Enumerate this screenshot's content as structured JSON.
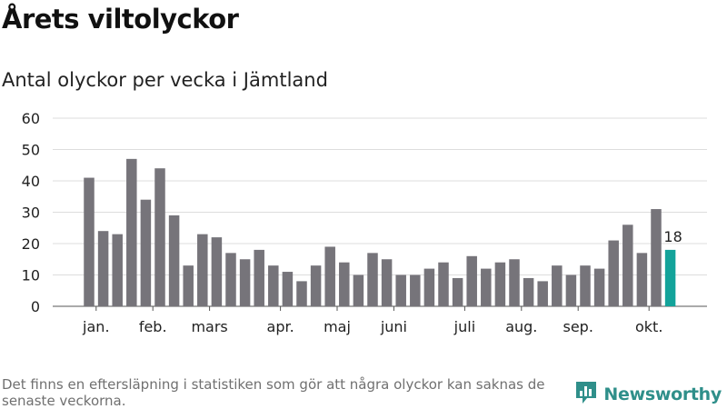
{
  "title": "Årets viltolyckor",
  "subtitle": "Antal olyckor per vecka i Jämtland",
  "footnote": "Det finns en eftersläpning i statistiken som gör att några olyckor kan saknas de senaste veckorna.",
  "brand": {
    "name": "Newsworthy",
    "logo_icon": "bar-chart-logo-icon"
  },
  "colors": {
    "bar": "#76747a",
    "highlight": "#13a39a",
    "grid": "#dddddd",
    "axis": "#555555",
    "brand": "#2f8f8a"
  },
  "chart_data": {
    "type": "bar",
    "title": "Antal olyckor per vecka i Jämtland",
    "xlabel": "",
    "ylabel": "",
    "ylim": [
      0,
      60
    ],
    "yticks": [
      0,
      10,
      20,
      30,
      40,
      50,
      60
    ],
    "grid": true,
    "values": [
      41,
      24,
      23,
      47,
      34,
      44,
      29,
      13,
      23,
      22,
      17,
      15,
      18,
      13,
      11,
      8,
      13,
      19,
      14,
      10,
      17,
      15,
      10,
      10,
      12,
      14,
      9,
      16,
      12,
      14,
      15,
      9,
      8,
      13,
      10,
      13,
      12,
      21,
      26,
      17,
      31,
      18
    ],
    "highlight_index": 41,
    "highlight_label": "18",
    "month_labels": [
      {
        "label": "jan.",
        "index": 0.5
      },
      {
        "label": "feb.",
        "index": 4.5
      },
      {
        "label": "mars",
        "index": 8.5
      },
      {
        "label": "apr.",
        "index": 13.5
      },
      {
        "label": "maj",
        "index": 17.5
      },
      {
        "label": "juni",
        "index": 21.5
      },
      {
        "label": "juli",
        "index": 26.5
      },
      {
        "label": "aug.",
        "index": 30.5
      },
      {
        "label": "sep.",
        "index": 34.5
      },
      {
        "label": "okt.",
        "index": 39.5
      }
    ]
  }
}
